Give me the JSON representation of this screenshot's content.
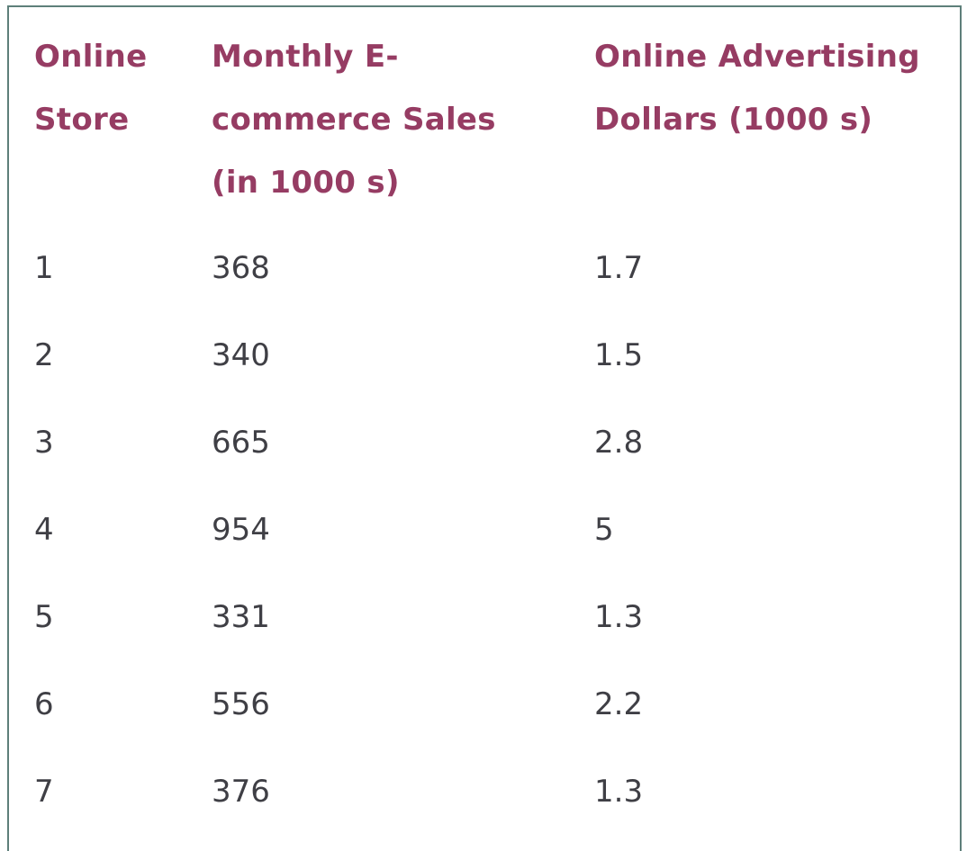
{
  "table": {
    "headers": [
      [
        "Online",
        "Store"
      ],
      [
        "Monthly E-",
        "commerce Sales",
        "(in 1000 s)"
      ],
      [
        "Online Advertising",
        "Dollars (1000 s)"
      ]
    ],
    "rows": [
      [
        "1",
        "368",
        "1.7"
      ],
      [
        "2",
        "340",
        "1.5"
      ],
      [
        "3",
        "665",
        "2.8"
      ],
      [
        "4",
        "954",
        "5"
      ],
      [
        "5",
        "331",
        "1.3"
      ],
      [
        "6",
        "556",
        "2.2"
      ],
      [
        "7",
        "376",
        "1.3"
      ]
    ]
  },
  "colors": {
    "header_text": "#963c63",
    "body_text": "#3f3f45",
    "border": "#5e7f7a"
  }
}
